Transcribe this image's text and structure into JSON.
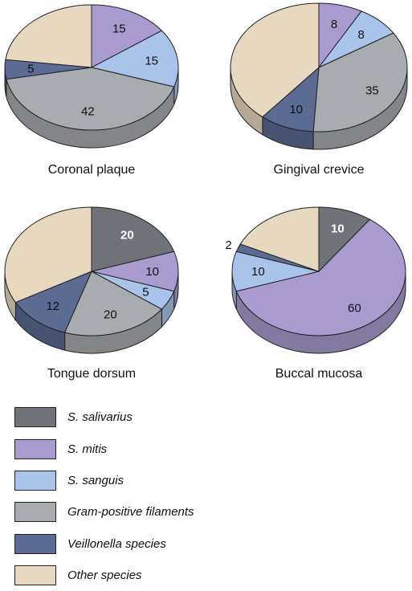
{
  "colors": {
    "s_salivarius": "#6f7278",
    "s_mitis": "#a99bcf",
    "s_sanguis": "#a9c4ea",
    "gram_positive": "#a8abaf",
    "veillonella": "#5b6b94",
    "other": "#e6d9bf"
  },
  "legend": [
    {
      "key": "s_salivarius",
      "label": "S. salivarius"
    },
    {
      "key": "s_mitis",
      "label": "S. mitis"
    },
    {
      "key": "s_sanguis",
      "label": "S. sanguis"
    },
    {
      "key": "gram_positive",
      "label": "Gram-positive filaments"
    },
    {
      "key": "veillonella",
      "label": "Veillonella species"
    },
    {
      "key": "other",
      "label": "Other species"
    }
  ],
  "chart_data": [
    {
      "type": "pie",
      "title": "Coronal plaque",
      "slices": [
        {
          "key": "s_mitis",
          "value": 15,
          "label": "15"
        },
        {
          "key": "s_sanguis",
          "value": 15,
          "label": "15"
        },
        {
          "key": "gram_positive",
          "value": 42,
          "label": "42"
        },
        {
          "key": "veillonella",
          "value": 5,
          "label": "5"
        },
        {
          "key": "other",
          "value": 23,
          "label": ""
        }
      ]
    },
    {
      "type": "pie",
      "title": "Gingival crevice",
      "slices": [
        {
          "key": "s_mitis",
          "value": 8,
          "label": "8"
        },
        {
          "key": "s_sanguis",
          "value": 8,
          "label": "8"
        },
        {
          "key": "gram_positive",
          "value": 35,
          "label": "35"
        },
        {
          "key": "veillonella",
          "value": 10,
          "label": "10"
        },
        {
          "key": "other",
          "value": 39,
          "label": ""
        }
      ]
    },
    {
      "type": "pie",
      "title": "Tongue dorsum",
      "slices": [
        {
          "key": "s_salivarius",
          "value": 20,
          "label": "20"
        },
        {
          "key": "s_mitis",
          "value": 10,
          "label": "10"
        },
        {
          "key": "s_sanguis",
          "value": 5,
          "label": "5"
        },
        {
          "key": "gram_positive",
          "value": 20,
          "label": "20"
        },
        {
          "key": "veillonella",
          "value": 12,
          "label": "12"
        },
        {
          "key": "other",
          "value": 33,
          "label": ""
        }
      ]
    },
    {
      "type": "pie",
      "title": "Buccal mucosa",
      "slices": [
        {
          "key": "s_salivarius",
          "value": 10,
          "label": "10"
        },
        {
          "key": "s_mitis",
          "value": 60,
          "label": "60"
        },
        {
          "key": "s_sanguis",
          "value": 10,
          "label": "10"
        },
        {
          "key": "veillonella",
          "value": 2,
          "label": "2"
        },
        {
          "key": "other",
          "value": 18,
          "label": ""
        }
      ]
    }
  ]
}
